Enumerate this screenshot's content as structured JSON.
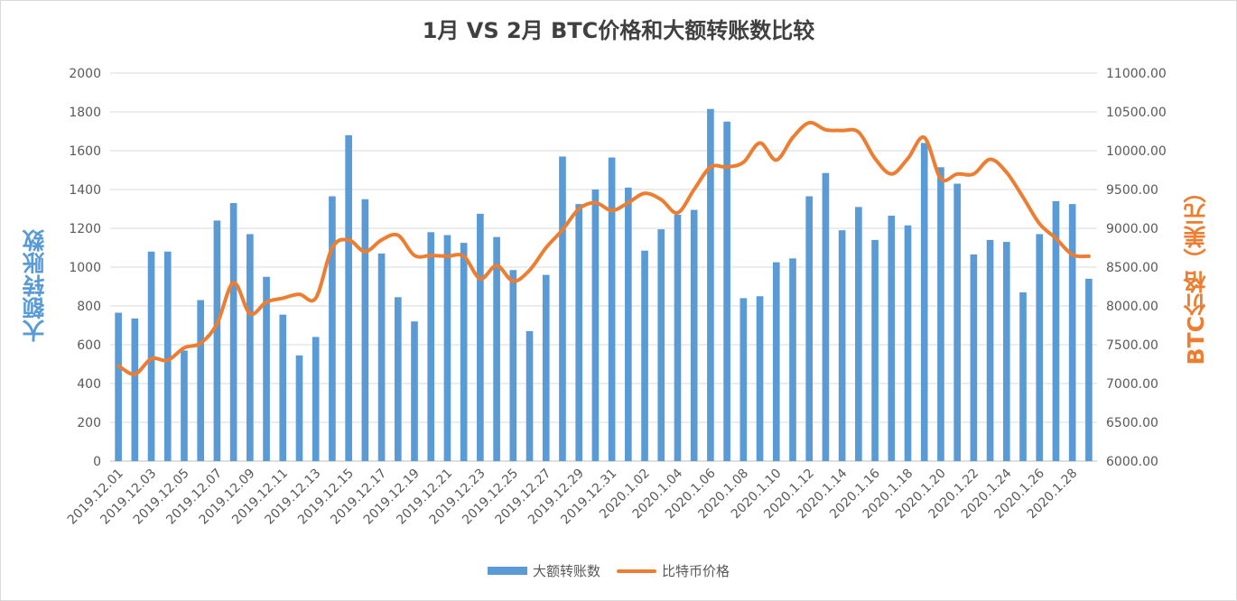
{
  "chart_data": {
    "type": "bar",
    "title": "1月 VS 2月 BTC价格和大额转账数比较",
    "ylabel": "大额转账数",
    "y2label": "BTC价格（美元）",
    "ylim": [
      0,
      2000
    ],
    "y2lim": [
      6000,
      11000
    ],
    "yticks": [
      "0",
      "200",
      "400",
      "600",
      "800",
      "1000",
      "1200",
      "1400",
      "1600",
      "1800",
      "2000"
    ],
    "y2ticks": [
      "6000.00",
      "6500.00",
      "7000.00",
      "7500.00",
      "8000.00",
      "8500.00",
      "9000.00",
      "9500.00",
      "10000.00",
      "10500.00",
      "11000.00"
    ],
    "grid": true,
    "legend_position": "bottom",
    "categories": [
      "2019.12.01",
      "2019.12.02",
      "2019.12.03",
      "2019.12.04",
      "2019.12.05",
      "2019.12.06",
      "2019.12.07",
      "2019.12.08",
      "2019.12.09",
      "2019.12.10",
      "2019.12.11",
      "2019.12.12",
      "2019.12.13",
      "2019.12.14",
      "2019.12.15",
      "2019.12.16",
      "2019.12.17",
      "2019.12.18",
      "2019.12.19",
      "2019.12.20",
      "2019.12.21",
      "2019.12.22",
      "2019.12.23",
      "2019.12.24",
      "2019.12.25",
      "2019.12.26",
      "2019.12.27",
      "2019.12.28",
      "2019.12.29",
      "2019.12.30",
      "2019.12.31",
      "2020.1.01",
      "2020.1.02",
      "2020.1.03",
      "2020.1.04",
      "2020.1.05",
      "2020.1.06",
      "2020.1.07",
      "2020.1.08",
      "2020.1.09",
      "2020.1.10",
      "2020.1.11",
      "2020.1.12",
      "2020.1.13",
      "2020.1.14",
      "2020.1.15",
      "2020.1.16",
      "2020.1.17",
      "2020.1.18",
      "2020.1.19",
      "2020.1.20",
      "2020.1.21",
      "2020.1.22",
      "2020.1.23",
      "2020.1.24",
      "2020.1.25",
      "2020.1.26",
      "2020.1.27",
      "2020.1.28",
      "2020.1.29"
    ],
    "xtick_labels": [
      "2019.12.01",
      "2019.12.03",
      "2019.12.05",
      "2019.12.07",
      "2019.12.09",
      "2019.12.11",
      "2019.12.13",
      "2019.12.15",
      "2019.12.17",
      "2019.12.19",
      "2019.12.21",
      "2019.12.23",
      "2019.12.25",
      "2019.12.27",
      "2019.12.29",
      "2019.12.31",
      "2020.1.02",
      "2020.1.04",
      "2020.1.06",
      "2020.1.08",
      "2020.1.10",
      "2020.1.12",
      "2020.1.14",
      "2020.1.16",
      "2020.1.18",
      "2020.1.20",
      "2020.1.22",
      "2020.1.24",
      "2020.1.26",
      "2020.1.28"
    ],
    "series": [
      {
        "name": "大额转账数",
        "type": "bar",
        "axis": "left",
        "color": "#5b9bd5",
        "values": [
          765,
          735,
          1080,
          1080,
          570,
          830,
          1240,
          1330,
          1170,
          950,
          755,
          545,
          640,
          1365,
          1680,
          1350,
          1070,
          845,
          720,
          1180,
          1165,
          1125,
          1275,
          1155,
          985,
          670,
          960,
          1570,
          1325,
          1400,
          1565,
          1410,
          1085,
          1195,
          1270,
          1295,
          1815,
          1750,
          840,
          850,
          1025,
          1045,
          1365,
          1485,
          1190,
          1310,
          1140,
          1265,
          1215,
          1640,
          1515,
          1430,
          1065,
          1140,
          1130,
          870,
          1170,
          1340,
          1325,
          940
        ]
      },
      {
        "name": "比特币价格",
        "type": "line",
        "axis": "right",
        "color": "#ed7d31",
        "values": [
          7230,
          7120,
          7320,
          7300,
          7460,
          7520,
          7770,
          8300,
          7900,
          8050,
          8100,
          8150,
          8100,
          8750,
          8850,
          8700,
          8850,
          8910,
          8650,
          8650,
          8640,
          8640,
          8350,
          8520,
          8320,
          8460,
          8750,
          8980,
          9250,
          9330,
          9230,
          9330,
          9450,
          9370,
          9200,
          9500,
          9790,
          9790,
          9850,
          10100,
          9880,
          10170,
          10360,
          10270,
          10260,
          10240,
          9900,
          9700,
          9900,
          10170,
          9640,
          9700,
          9700,
          9890,
          9720,
          9400,
          9060,
          8870,
          8660,
          8640
        ]
      }
    ]
  }
}
